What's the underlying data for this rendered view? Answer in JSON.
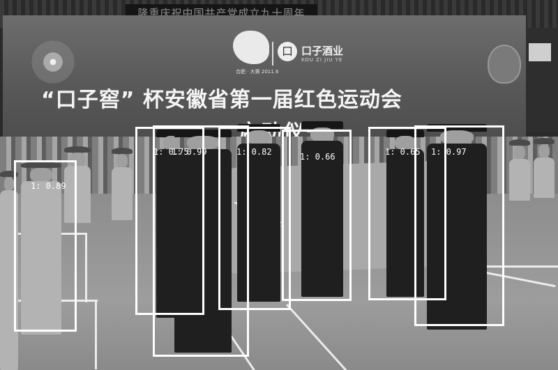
{
  "scene": {
    "top_banner_text": "隆重庆祝中国共产党成立九十周年",
    "logo_year_text": "合肥 · 大赛 2011.6",
    "brand_circle_glyph": "口",
    "brand_name": "口子酒业",
    "brand_pinyin": "KOU ZI JIU YE",
    "headline": "“口子窖” 杯安徽省第一届红色运动会",
    "subline": "启动仪式"
  },
  "detections": [
    {
      "label": "1: 0.89"
    },
    {
      "label": "1: 0.75"
    },
    {
      "label": "1: 0.99"
    },
    {
      "label": "1: 0.82"
    },
    {
      "label": "1: 0.66"
    },
    {
      "label": "1: 0.65"
    },
    {
      "label": "1: 0.97"
    }
  ],
  "colors": {
    "box": "#ffffff",
    "image_tone": "grayscale"
  }
}
